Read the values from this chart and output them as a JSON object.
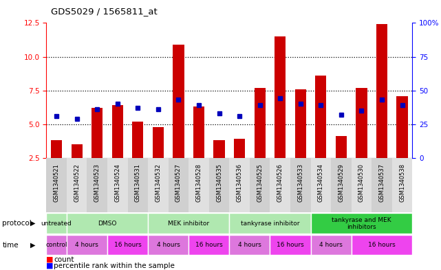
{
  "title": "GDS5029 / 1565811_at",
  "samples": [
    "GSM1340521",
    "GSM1340522",
    "GSM1340523",
    "GSM1340524",
    "GSM1340531",
    "GSM1340532",
    "GSM1340527",
    "GSM1340528",
    "GSM1340535",
    "GSM1340536",
    "GSM1340525",
    "GSM1340526",
    "GSM1340533",
    "GSM1340534",
    "GSM1340529",
    "GSM1340530",
    "GSM1340537",
    "GSM1340538"
  ],
  "red_values": [
    3.8,
    3.5,
    6.2,
    6.4,
    5.2,
    4.8,
    10.9,
    6.3,
    3.8,
    3.9,
    7.7,
    11.5,
    7.6,
    8.6,
    4.1,
    7.7,
    12.4,
    7.1
  ],
  "blue_values": [
    5.6,
    5.4,
    6.1,
    6.5,
    6.2,
    6.1,
    6.8,
    6.4,
    5.8,
    5.6,
    6.4,
    6.9,
    6.5,
    6.4,
    5.7,
    6.0,
    6.8,
    6.4
  ],
  "ylim_left": [
    2.5,
    12.5
  ],
  "ylim_right": [
    0,
    100
  ],
  "yticks_left": [
    2.5,
    5.0,
    7.5,
    10.0,
    12.5
  ],
  "yticks_right": [
    0,
    25,
    50,
    75,
    100
  ],
  "bar_color": "#cc0000",
  "dot_color": "#0000bb",
  "protocol_groups": [
    {
      "label": "untreated",
      "start": 0,
      "end": 1,
      "color": "#b0e8b0"
    },
    {
      "label": "DMSO",
      "start": 1,
      "end": 5,
      "color": "#b0e8b0"
    },
    {
      "label": "MEK inhibitor",
      "start": 5,
      "end": 9,
      "color": "#b0e8b0"
    },
    {
      "label": "tankyrase inhibitor",
      "start": 9,
      "end": 13,
      "color": "#b0e8b0"
    },
    {
      "label": "tankyrase and MEK\ninhibitors",
      "start": 13,
      "end": 18,
      "color": "#33cc44"
    }
  ],
  "time_groups": [
    {
      "label": "control",
      "start": 0,
      "end": 1,
      "color": "#dd77dd"
    },
    {
      "label": "4 hours",
      "start": 1,
      "end": 3,
      "color": "#dd77dd"
    },
    {
      "label": "16 hours",
      "start": 3,
      "end": 5,
      "color": "#ee44ee"
    },
    {
      "label": "4 hours",
      "start": 5,
      "end": 7,
      "color": "#dd77dd"
    },
    {
      "label": "16 hours",
      "start": 7,
      "end": 9,
      "color": "#ee44ee"
    },
    {
      "label": "4 hours",
      "start": 9,
      "end": 11,
      "color": "#dd77dd"
    },
    {
      "label": "16 hours",
      "start": 11,
      "end": 13,
      "color": "#ee44ee"
    },
    {
      "label": "4 hours",
      "start": 13,
      "end": 15,
      "color": "#dd77dd"
    },
    {
      "label": "16 hours",
      "start": 15,
      "end": 18,
      "color": "#ee44ee"
    }
  ]
}
